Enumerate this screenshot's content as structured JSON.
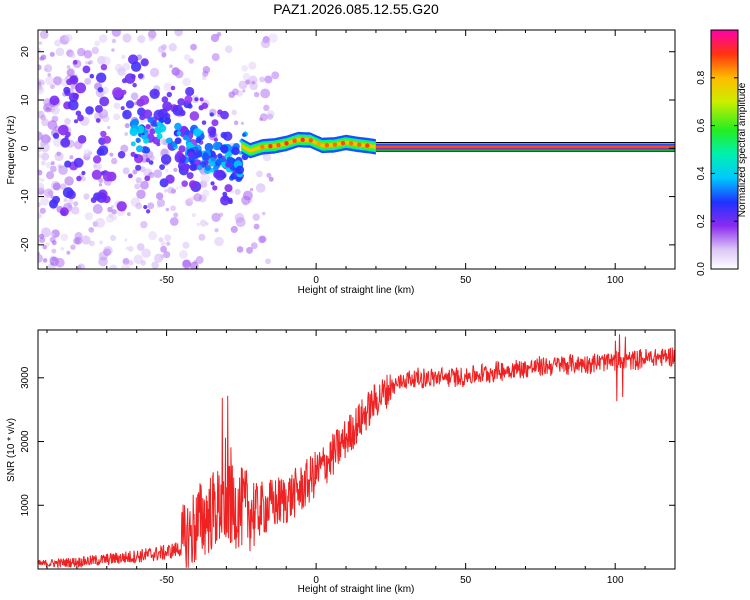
{
  "title": "PAZ1.2026.085.12.55.G20",
  "colors": {
    "snr_line": "#ee2222",
    "axis": "#000000",
    "bg": "#ffffff"
  },
  "chart_data": [
    {
      "type": "heatmap",
      "title": "PAZ1.2026.085.12.55.G20",
      "xlabel": "Height of straight line (km)",
      "ylabel": "Frequency (Hz)",
      "xlim": [
        -93,
        120
      ],
      "ylim": [
        -25,
        24.5
      ],
      "xticks": [
        -50,
        0,
        50,
        100
      ],
      "yticks": [
        -20,
        -10,
        0,
        10,
        20
      ],
      "ridge": {
        "description_points_x": [
          -46,
          -40,
          -34,
          -30,
          -27,
          -25,
          -22,
          -18,
          -14,
          -10,
          -6,
          -2,
          2,
          6,
          10,
          14,
          18,
          20,
          120
        ],
        "description_points_y": [
          2.5,
          1.5,
          -0.5,
          -2.5,
          -3.5,
          0.5,
          -0.5,
          0.3,
          0.5,
          1.0,
          1.8,
          1.7,
          0.6,
          0.7,
          1.2,
          0.8,
          0.5,
          0.3,
          0.3
        ]
      },
      "colorbar": {
        "label": "Normalized spectral amplitude",
        "range": [
          0,
          1
        ],
        "ticks": [
          0.0,
          0.2,
          0.4,
          0.6,
          0.8
        ],
        "tick_labels": [
          "0.0",
          "0.2",
          "0.4",
          "0.6",
          "0.8"
        ]
      }
    },
    {
      "type": "line",
      "xlabel": "Height of straight line (km)",
      "ylabel": "SNR (10 * v/v)",
      "xlim": [
        -93,
        120
      ],
      "ylim": [
        0,
        3750
      ],
      "xticks": [
        -50,
        0,
        50,
        100
      ],
      "yticks": [
        1000,
        2000,
        3000
      ],
      "series": [
        {
          "name": "SNR",
          "x": [
            -93,
            -80,
            -70,
            -60,
            -50,
            -45,
            -40,
            -35,
            -30,
            -25,
            -20,
            -15,
            -10,
            -5,
            0,
            5,
            10,
            15,
            20,
            25,
            30,
            40,
            50,
            60,
            70,
            80,
            90,
            100,
            110,
            120
          ],
          "y": [
            80,
            110,
            150,
            200,
            260,
            330,
            700,
            900,
            1000,
            950,
            900,
            1000,
            1100,
            1250,
            1500,
            1750,
            2050,
            2350,
            2650,
            2850,
            2980,
            3000,
            3020,
            3100,
            3150,
            3200,
            3230,
            3250,
            3300,
            3350
          ]
        }
      ]
    }
  ]
}
